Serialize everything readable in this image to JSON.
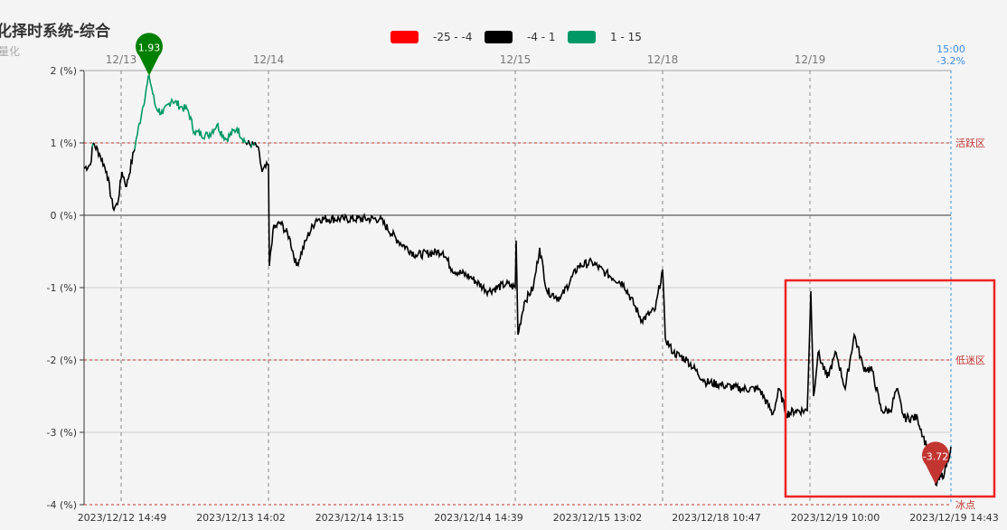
{
  "title": "化择时系统-综合",
  "subtitle": "量化",
  "chart_data": {
    "type": "line",
    "ylim": [
      -4,
      2
    ],
    "yticks": [
      "2 (%)",
      "1 (%)",
      "0 (%)",
      "-1 (%)",
      "-2 (%)",
      "-3 (%)",
      "-4 (%)"
    ],
    "ytick_values": [
      2,
      1,
      0,
      -1,
      -2,
      -3,
      -4
    ],
    "x_tick_labels": [
      "2023/12/12 14:49",
      "2023/12/13 14:02",
      "2023/12/14 13:15",
      "2023/12/14 14:39",
      "2023/12/15 13:02",
      "2023/12/18 10:47",
      "2023/12/19 10:00",
      "2023/12/19 14:43"
    ],
    "day_labels": [
      "12/13",
      "12/14",
      "12/15",
      "12/18",
      "12/19"
    ],
    "day_label_index": [
      41,
      204,
      477,
      640,
      803
    ],
    "n_samples": 960,
    "legend": [
      {
        "label": "-25 - -4",
        "color": "#ff0000",
        "min": -25,
        "max": -4
      },
      {
        "label": "-4 - 1",
        "color": "#000000",
        "min": -4,
        "max": 1
      },
      {
        "label": "1 - 15",
        "color": "#009966",
        "min": 1,
        "max": 15
      }
    ],
    "series_points": [
      [
        0,
        0.65
      ],
      [
        7,
        0.7
      ],
      [
        10,
        1.0
      ],
      [
        17,
        0.85
      ],
      [
        25,
        0.6
      ],
      [
        32,
        0.1
      ],
      [
        37,
        0.15
      ],
      [
        42,
        0.6
      ],
      [
        47,
        0.4
      ],
      [
        57,
        1.0
      ],
      [
        65,
        1.5
      ],
      [
        72,
        1.93
      ],
      [
        79,
        1.5
      ],
      [
        87,
        1.4
      ],
      [
        97,
        1.6
      ],
      [
        107,
        1.5
      ],
      [
        115,
        1.45
      ],
      [
        122,
        1.15
      ],
      [
        137,
        1.1
      ],
      [
        147,
        1.25
      ],
      [
        157,
        1.05
      ],
      [
        169,
        1.2
      ],
      [
        179,
        1.0
      ],
      [
        192,
        0.95
      ],
      [
        197,
        0.6
      ],
      [
        204,
        0.7
      ],
      [
        205,
        -0.7
      ],
      [
        209,
        -0.2
      ],
      [
        217,
        -0.1
      ],
      [
        227,
        -0.3
      ],
      [
        235,
        -0.7
      ],
      [
        247,
        -0.3
      ],
      [
        257,
        -0.05
      ],
      [
        287,
        -0.05
      ],
      [
        327,
        -0.05
      ],
      [
        347,
        -0.35
      ],
      [
        367,
        -0.55
      ],
      [
        397,
        -0.5
      ],
      [
        407,
        -0.75
      ],
      [
        427,
        -0.85
      ],
      [
        447,
        -1.05
      ],
      [
        467,
        -0.95
      ],
      [
        477,
        -1.0
      ],
      [
        478,
        -0.35
      ],
      [
        480,
        -1.65
      ],
      [
        487,
        -1.2
      ],
      [
        497,
        -1.0
      ],
      [
        504,
        -0.45
      ],
      [
        512,
        -1.05
      ],
      [
        527,
        -1.15
      ],
      [
        547,
        -0.7
      ],
      [
        562,
        -0.65
      ],
      [
        577,
        -0.8
      ],
      [
        597,
        -0.95
      ],
      [
        617,
        -1.45
      ],
      [
        632,
        -1.3
      ],
      [
        640,
        -0.75
      ],
      [
        643,
        -1.7
      ],
      [
        652,
        -1.9
      ],
      [
        667,
        -2.0
      ],
      [
        687,
        -2.3
      ],
      [
        707,
        -2.35
      ],
      [
        727,
        -2.4
      ],
      [
        747,
        -2.4
      ],
      [
        762,
        -2.75
      ],
      [
        769,
        -2.4
      ],
      [
        777,
        -2.75
      ],
      [
        787,
        -2.7
      ],
      [
        800,
        -2.7
      ],
      [
        804,
        -1.05
      ],
      [
        807,
        -2.5
      ],
      [
        812,
        -1.9
      ],
      [
        822,
        -2.25
      ],
      [
        832,
        -1.9
      ],
      [
        842,
        -2.4
      ],
      [
        852,
        -1.65
      ],
      [
        862,
        -2.1
      ],
      [
        872,
        -2.15
      ],
      [
        882,
        -2.7
      ],
      [
        892,
        -2.7
      ],
      [
        899,
        -2.4
      ],
      [
        907,
        -2.8
      ],
      [
        922,
        -2.8
      ],
      [
        932,
        -3.2
      ],
      [
        942,
        -3.72
      ],
      [
        952,
        -3.55
      ],
      [
        959,
        -3.2
      ]
    ],
    "mark_lines": [
      {
        "value": 1,
        "label": "活跃区"
      },
      {
        "value": -2,
        "label": "低迷区"
      },
      {
        "value": -4,
        "label": "冰点"
      }
    ],
    "max_point": {
      "value": 1.93,
      "label": "1.93",
      "color": "#008000"
    },
    "min_point": {
      "value": -3.72,
      "label": "-3.72",
      "color": "#c23531"
    },
    "last": {
      "time": "15:00",
      "value": "-3.2%"
    },
    "grid": "horizontal",
    "highlight_color": "#ee2222"
  }
}
